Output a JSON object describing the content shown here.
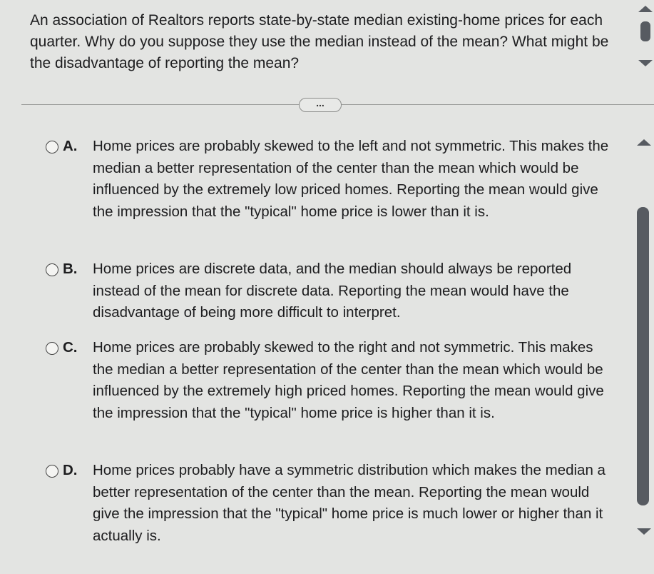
{
  "question": "An association of Realtors reports state-by-state median existing-home prices for each quarter.  Why do you suppose they use the median instead of the mean? What might be the disadvantage of reporting the mean?",
  "more_label": "...",
  "options": [
    {
      "letter": "A.",
      "text": "Home prices are probably skewed to the left and not symmetric. This makes the median a better representation of the center than the mean which would be influenced by the extremely low priced homes. Reporting the mean would give the impression that the \"typical\" home price is lower than it is."
    },
    {
      "letter": "B.",
      "text": "Home prices are discrete data, and the median should always be reported instead of the mean for discrete data. Reporting the mean would have the disadvantage of being more difficult to interpret."
    },
    {
      "letter": "C.",
      "text": "Home prices are probably skewed to the right and not symmetric. This makes the median a better representation of the center than the mean which would be influenced by the extremely high priced homes. Reporting the mean would give the impression that the \"typical\" home price is higher than it is."
    },
    {
      "letter": "D.",
      "text": "Home prices probably have a symmetric distribution which makes the median a better representation of the center than the mean. Reporting the mean would give the impression that the \"typical\" home price is much lower or higher than it actually is."
    }
  ]
}
